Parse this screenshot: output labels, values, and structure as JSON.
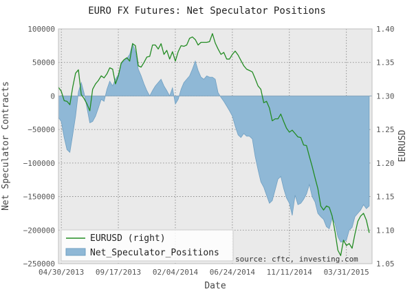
{
  "chart_data": {
    "type": "area",
    "title": "EURO FX Futures: Net Speculator Positions",
    "xlabel": "Date",
    "ylabel_left": "Net Speculator Contracts",
    "ylabel_right": "EURUSD",
    "source_note": "source: cftc, investing.com",
    "x_tick_labels": [
      "04/30/2013",
      "09/17/2013",
      "02/04/2014",
      "06/24/2014",
      "11/11/2014",
      "03/31/2015"
    ],
    "y_left_ticks": [
      "100000",
      "50000",
      "0",
      "−50000",
      "−100000",
      "−150000",
      "−200000",
      "−250000"
    ],
    "y_right_ticks": [
      "1.40",
      "1.35",
      "1.30",
      "1.25",
      "1.20",
      "1.15",
      "1.10",
      "1.05"
    ],
    "ylim_left": [
      -250000,
      100000
    ],
    "ylim_right": [
      1.05,
      1.4
    ],
    "grid": true,
    "legend_position": "bottom-left",
    "series": [
      {
        "name": "Net_Speculator_Positions",
        "axis": "left",
        "style": "area",
        "color": "#8fb8d6",
        "x": [
          "2013-04-23",
          "2013-04-30",
          "2013-05-07",
          "2013-05-14",
          "2013-05-21",
          "2013-05-28",
          "2013-06-04",
          "2013-06-11",
          "2013-06-18",
          "2013-06-25",
          "2013-07-02",
          "2013-07-09",
          "2013-07-16",
          "2013-07-23",
          "2013-07-30",
          "2013-08-06",
          "2013-08-13",
          "2013-08-20",
          "2013-08-27",
          "2013-09-03",
          "2013-09-10",
          "2013-09-17",
          "2013-09-24",
          "2013-10-01",
          "2013-10-08",
          "2013-10-15",
          "2013-10-22",
          "2013-10-29",
          "2013-11-05",
          "2013-11-12",
          "2013-11-19",
          "2013-11-26",
          "2013-12-03",
          "2013-12-10",
          "2013-12-17",
          "2013-12-24",
          "2013-12-31",
          "2014-01-07",
          "2014-01-14",
          "2014-01-21",
          "2014-01-28",
          "2014-02-04",
          "2014-02-11",
          "2014-02-18",
          "2014-02-25",
          "2014-03-04",
          "2014-03-11",
          "2014-03-18",
          "2014-03-25",
          "2014-04-01",
          "2014-04-08",
          "2014-04-15",
          "2014-04-22",
          "2014-04-29",
          "2014-05-06",
          "2014-05-13",
          "2014-05-20",
          "2014-05-27",
          "2014-06-03",
          "2014-06-10",
          "2014-06-17",
          "2014-06-24",
          "2014-07-01",
          "2014-07-08",
          "2014-07-15",
          "2014-07-22",
          "2014-07-29",
          "2014-08-05",
          "2014-08-12",
          "2014-08-19",
          "2014-08-26",
          "2014-09-02",
          "2014-09-09",
          "2014-09-16",
          "2014-09-23",
          "2014-09-30",
          "2014-10-07",
          "2014-10-14",
          "2014-10-21",
          "2014-10-28",
          "2014-11-04",
          "2014-11-11",
          "2014-11-18",
          "2014-11-25",
          "2014-12-02",
          "2014-12-09",
          "2014-12-16",
          "2014-12-23",
          "2014-12-30",
          "2015-01-06",
          "2015-01-13",
          "2015-01-20",
          "2015-01-27",
          "2015-02-03",
          "2015-02-10",
          "2015-02-17",
          "2015-02-24",
          "2015-03-03",
          "2015-03-10",
          "2015-03-17",
          "2015-03-24",
          "2015-03-31",
          "2015-04-07",
          "2015-04-14",
          "2015-04-21",
          "2015-04-28",
          "2015-05-05",
          "2015-05-12",
          "2015-05-19",
          "2015-05-26"
        ],
        "values": [
          -32000,
          -38000,
          -62000,
          -80000,
          -84000,
          -58000,
          -30000,
          6000,
          20000,
          4000,
          -18000,
          -40000,
          -38000,
          -30000,
          -18000,
          -5000,
          -8000,
          10000,
          22000,
          15000,
          25000,
          32000,
          48000,
          52000,
          56000,
          62000,
          78000,
          66000,
          40000,
          30000,
          18000,
          8000,
          0,
          8000,
          15000,
          20000,
          25000,
          15000,
          8000,
          0,
          12000,
          -12000,
          -5000,
          10000,
          20000,
          25000,
          30000,
          40000,
          52000,
          38000,
          28000,
          25000,
          30000,
          28000,
          28000,
          25000,
          5000,
          -2000,
          -8000,
          -15000,
          -22000,
          -30000,
          -45000,
          -58000,
          -62000,
          -56000,
          -60000,
          -60000,
          -64000,
          -90000,
          -110000,
          -128000,
          -136000,
          -148000,
          -160000,
          -156000,
          -140000,
          -124000,
          -120000,
          -138000,
          -152000,
          -160000,
          -178000,
          -148000,
          -162000,
          -160000,
          -154000,
          -146000,
          -132000,
          -150000,
          -158000,
          -175000,
          -180000,
          -184000,
          -195000,
          -198000,
          -182000,
          -190000,
          -210000,
          -218000,
          -217000,
          -215000,
          -200000,
          -196000,
          -180000,
          -175000,
          -170000,
          -162000,
          -168000,
          -164000
        ]
      },
      {
        "name": "EURUSD (right)",
        "axis": "right",
        "style": "line",
        "color": "#228b22",
        "x": [
          "2013-04-23",
          "2013-04-30",
          "2013-05-07",
          "2013-05-14",
          "2013-05-21",
          "2013-05-28",
          "2013-06-04",
          "2013-06-11",
          "2013-06-18",
          "2013-06-25",
          "2013-07-02",
          "2013-07-09",
          "2013-07-16",
          "2013-07-23",
          "2013-07-30",
          "2013-08-06",
          "2013-08-13",
          "2013-08-20",
          "2013-08-27",
          "2013-09-03",
          "2013-09-10",
          "2013-09-17",
          "2013-09-24",
          "2013-10-01",
          "2013-10-08",
          "2013-10-15",
          "2013-10-22",
          "2013-10-29",
          "2013-11-05",
          "2013-11-12",
          "2013-11-19",
          "2013-11-26",
          "2013-12-03",
          "2013-12-10",
          "2013-12-17",
          "2013-12-24",
          "2013-12-31",
          "2014-01-07",
          "2014-01-14",
          "2014-01-21",
          "2014-01-28",
          "2014-02-04",
          "2014-02-11",
          "2014-02-18",
          "2014-02-25",
          "2014-03-04",
          "2014-03-11",
          "2014-03-18",
          "2014-03-25",
          "2014-04-01",
          "2014-04-08",
          "2014-04-15",
          "2014-04-22",
          "2014-04-29",
          "2014-05-06",
          "2014-05-13",
          "2014-05-20",
          "2014-05-27",
          "2014-06-03",
          "2014-06-10",
          "2014-06-17",
          "2014-06-24",
          "2014-07-01",
          "2014-07-08",
          "2014-07-15",
          "2014-07-22",
          "2014-07-29",
          "2014-08-05",
          "2014-08-12",
          "2014-08-19",
          "2014-08-26",
          "2014-09-02",
          "2014-09-09",
          "2014-09-16",
          "2014-09-23",
          "2014-09-30",
          "2014-10-07",
          "2014-10-14",
          "2014-10-21",
          "2014-10-28",
          "2014-11-04",
          "2014-11-11",
          "2014-11-18",
          "2014-11-25",
          "2014-12-02",
          "2014-12-09",
          "2014-12-16",
          "2014-12-23",
          "2014-12-30",
          "2015-01-06",
          "2015-01-13",
          "2015-01-20",
          "2015-01-27",
          "2015-02-03",
          "2015-02-10",
          "2015-02-17",
          "2015-02-24",
          "2015-03-03",
          "2015-03-10",
          "2015-03-17",
          "2015-03-24",
          "2015-03-31",
          "2015-04-07",
          "2015-04-14",
          "2015-04-21",
          "2015-04-28",
          "2015-05-05",
          "2015-05-12",
          "2015-05-19",
          "2015-05-26"
        ],
        "values": [
          1.313,
          1.307,
          1.293,
          1.292,
          1.287,
          1.313,
          1.334,
          1.339,
          1.302,
          1.296,
          1.288,
          1.278,
          1.31,
          1.318,
          1.323,
          1.33,
          1.327,
          1.333,
          1.342,
          1.34,
          1.318,
          1.33,
          1.349,
          1.354,
          1.357,
          1.352,
          1.378,
          1.375,
          1.345,
          1.343,
          1.35,
          1.358,
          1.359,
          1.376,
          1.376,
          1.37,
          1.378,
          1.362,
          1.368,
          1.355,
          1.366,
          1.352,
          1.366,
          1.375,
          1.374,
          1.376,
          1.386,
          1.388,
          1.384,
          1.376,
          1.38,
          1.38,
          1.38,
          1.381,
          1.393,
          1.379,
          1.37,
          1.362,
          1.365,
          1.355,
          1.355,
          1.362,
          1.367,
          1.361,
          1.353,
          1.345,
          1.34,
          1.338,
          1.336,
          1.326,
          1.315,
          1.31,
          1.29,
          1.292,
          1.282,
          1.263,
          1.266,
          1.266,
          1.273,
          1.262,
          1.252,
          1.246,
          1.249,
          1.244,
          1.239,
          1.238,
          1.227,
          1.226,
          1.21,
          1.195,
          1.178,
          1.162,
          1.136,
          1.13,
          1.136,
          1.134,
          1.121,
          1.098,
          1.07,
          1.062,
          1.085,
          1.077,
          1.08,
          1.073,
          1.094,
          1.113,
          1.121,
          1.125,
          1.115,
          1.096
        ]
      }
    ]
  }
}
